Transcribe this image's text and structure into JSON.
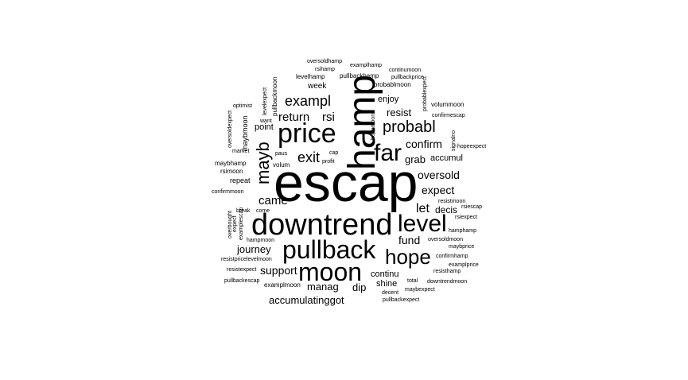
{
  "words": [
    {
      "text": "escap"
    },
    {
      "text": "downtrend"
    },
    {
      "text": "hamp"
    },
    {
      "text": "price"
    },
    {
      "text": "pullback"
    },
    {
      "text": "moon"
    },
    {
      "text": "far"
    },
    {
      "text": "level"
    },
    {
      "text": "hope"
    },
    {
      "text": "probabl"
    },
    {
      "text": "mayb"
    },
    {
      "text": "exampl"
    },
    {
      "text": "exit"
    },
    {
      "text": "return"
    },
    {
      "text": "rsi"
    },
    {
      "text": "came"
    },
    {
      "text": "confirm"
    },
    {
      "text": "oversold"
    },
    {
      "text": "expect"
    },
    {
      "text": "grab"
    },
    {
      "text": "accumul"
    },
    {
      "text": "let"
    },
    {
      "text": "decis"
    },
    {
      "text": "fund"
    },
    {
      "text": "journey"
    },
    {
      "text": "support"
    },
    {
      "text": "manag"
    },
    {
      "text": "dip"
    },
    {
      "text": "continu"
    },
    {
      "text": "shine"
    },
    {
      "text": "accumulatinggot"
    },
    {
      "text": "resist"
    },
    {
      "text": "enjoy"
    },
    {
      "text": "point"
    },
    {
      "text": "week"
    },
    {
      "text": "levelhamp"
    },
    {
      "text": "pullbackhamp"
    },
    {
      "text": "probablmoon"
    },
    {
      "text": "rsihamp"
    },
    {
      "text": "exampl"
    },
    {
      "text": "examplhamp"
    },
    {
      "text": "continumoon"
    },
    {
      "text": "pullbackprice"
    },
    {
      "text": "oversoldhamp"
    },
    {
      "text": "volummoon"
    },
    {
      "text": "confirmescap"
    },
    {
      "text": "hopeexpect"
    },
    {
      "text": "rsiescap"
    },
    {
      "text": "rsiexpect"
    },
    {
      "text": "hamphamp"
    },
    {
      "text": "oversoldmoon"
    },
    {
      "text": "maybprice"
    },
    {
      "text": "confirmhamp"
    },
    {
      "text": "examplprice"
    },
    {
      "text": "resisthamp"
    },
    {
      "text": "downtrendmoon"
    },
    {
      "text": "maybexpect"
    },
    {
      "text": "pullbackexpect"
    },
    {
      "text": "decent"
    },
    {
      "text": "total"
    },
    {
      "text": "examplmoon"
    },
    {
      "text": "pullbackescap"
    },
    {
      "text": "resistexpect"
    },
    {
      "text": "resistpricelevelmoon"
    },
    {
      "text": "hampmoon"
    },
    {
      "text": "come"
    },
    {
      "text": "break"
    },
    {
      "text": "confirmmoon"
    },
    {
      "text": "repeat"
    },
    {
      "text": "rsimoon"
    },
    {
      "text": "maybhamp"
    },
    {
      "text": "market"
    },
    {
      "text": "volum"
    },
    {
      "text": "paus"
    },
    {
      "text": "profit"
    },
    {
      "text": "cap"
    },
    {
      "text": "want"
    },
    {
      "text": "optimist"
    },
    {
      "text": "pullbackmoon"
    },
    {
      "text": "maybmoon"
    },
    {
      "text": "oversoldexpect"
    },
    {
      "text": "levelexpect"
    },
    {
      "text": "hopemoon"
    },
    {
      "text": "probablexpect"
    },
    {
      "text": "signalno"
    },
    {
      "text": "tasti"
    },
    {
      "text": "resistmoon"
    },
    {
      "text": "overbought"
    },
    {
      "text": "examplescap"
    },
    {
      "text": "expect"
    }
  ]
}
